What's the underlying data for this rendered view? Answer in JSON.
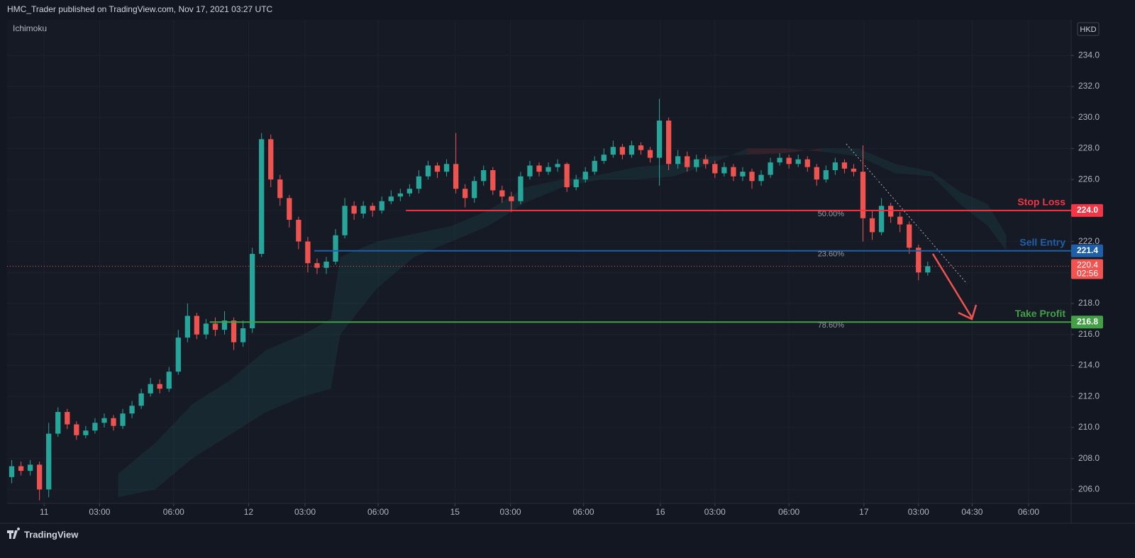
{
  "header": {
    "publisher": "HMC_Trader published on TradingView.com, Nov 17, 2021 03:27 UTC",
    "indicator": "Ichimoku",
    "currency": "HKD",
    "brand": "TradingView"
  },
  "chart_data": {
    "type": "candlestick",
    "up_color": "#26a69a",
    "down_color": "#ef5350",
    "ylim": [
      205.1,
      236.3
    ],
    "xlim": [
      0,
      115
    ],
    "yticks": [
      {
        "value": 206,
        "label": "206.0"
      },
      {
        "value": 208,
        "label": "208.0"
      },
      {
        "value": 210,
        "label": "210.0"
      },
      {
        "value": 212,
        "label": "212.0"
      },
      {
        "value": 214,
        "label": "214.0"
      },
      {
        "value": 216,
        "label": "216.0"
      },
      {
        "value": 218,
        "label": "218.0"
      },
      {
        "value": 220,
        "label": "220.0"
      },
      {
        "value": 222,
        "label": "222.0"
      },
      {
        "value": 224,
        "label": "224.0"
      },
      {
        "value": 226,
        "label": "226.0"
      },
      {
        "value": 228,
        "label": "228.0"
      },
      {
        "value": 230,
        "label": "230.0"
      },
      {
        "value": 232,
        "label": "232.0"
      },
      {
        "value": 234,
        "label": "234.0"
      }
    ],
    "xticks": [
      {
        "value": 4,
        "label": "11"
      },
      {
        "value": 10,
        "label": "03:00"
      },
      {
        "value": 18,
        "label": "06:00"
      },
      {
        "value": 26.1,
        "label": "12"
      },
      {
        "value": 32.2,
        "label": "03:00"
      },
      {
        "value": 40.1,
        "label": "06:00"
      },
      {
        "value": 48.4,
        "label": "15"
      },
      {
        "value": 54.4,
        "label": "03:00"
      },
      {
        "value": 62.3,
        "label": "06:00"
      },
      {
        "value": 70.6,
        "label": "16"
      },
      {
        "value": 76.5,
        "label": "03:00"
      },
      {
        "value": 84.5,
        "label": "06:00"
      },
      {
        "value": 92.6,
        "label": "17"
      },
      {
        "value": 98.5,
        "label": "03:00"
      },
      {
        "value": 104.3,
        "label": "04:30"
      },
      {
        "value": 110.4,
        "label": "06:00"
      }
    ],
    "open": [
      206.8,
      207.5,
      207.2,
      207.6,
      206.0,
      209.6,
      211.0,
      210.2,
      209.5,
      209.8,
      210.3,
      210.6,
      210.1,
      210.9,
      211.4,
      212.2,
      212.8,
      212.5,
      213.6,
      215.8,
      217.2,
      216.0,
      216.7,
      216.3,
      216.9,
      215.5,
      216.4,
      221.2,
      228.6,
      226.0,
      224.8,
      223.4,
      222.0,
      220.6,
      220.3,
      220.7,
      222.4,
      224.3,
      223.8,
      224.3,
      224.0,
      224.6,
      224.9,
      225.1,
      225.4,
      226.2,
      226.9,
      226.5,
      227.0,
      225.4,
      224.8,
      225.9,
      226.6,
      225.3,
      224.9,
      224.6,
      226.2,
      226.9,
      226.5,
      226.8,
      227.0,
      225.5,
      226.0,
      226.5,
      227.2,
      227.6,
      228.1,
      227.6,
      228.2,
      227.9,
      227.4,
      229.8,
      227.0,
      227.5,
      226.8,
      227.3,
      227.0,
      226.4,
      226.8,
      226.2,
      226.5,
      225.9,
      226.3,
      227.1,
      227.4,
      227.0,
      227.3,
      226.8,
      226.0,
      226.6,
      227.1,
      226.7,
      226.5,
      223.5,
      222.6,
      224.3,
      223.6,
      223.1,
      221.6,
      220.0
    ],
    "high": [
      207.9,
      207.8,
      207.9,
      207.8,
      210.3,
      211.3,
      211.2,
      210.4,
      210.1,
      210.6,
      210.9,
      210.8,
      211.2,
      211.7,
      212.5,
      213.2,
      213.1,
      213.9,
      216.3,
      218.0,
      217.4,
      217.0,
      217.1,
      217.5,
      217.1,
      216.9,
      221.6,
      229.0,
      228.9,
      226.3,
      225.0,
      223.6,
      222.3,
      220.9,
      221.0,
      222.8,
      224.8,
      224.6,
      224.6,
      224.5,
      224.9,
      225.3,
      225.4,
      225.7,
      226.6,
      227.2,
      227.1,
      227.3,
      229.0,
      225.7,
      226.2,
      226.9,
      226.8,
      225.6,
      225.2,
      226.5,
      227.2,
      227.1,
      227.1,
      227.3,
      227.1,
      226.3,
      226.8,
      227.5,
      228.0,
      228.5,
      228.3,
      228.5,
      228.4,
      228.1,
      231.2,
      230.0,
      227.9,
      227.8,
      227.6,
      227.6,
      227.2,
      227.1,
      227.0,
      226.8,
      226.7,
      226.6,
      227.4,
      227.7,
      227.6,
      227.6,
      227.5,
      227.0,
      226.9,
      227.4,
      227.3,
      227.0,
      228.2,
      224.0,
      224.8,
      224.5,
      223.9,
      223.3,
      221.8,
      220.7
    ],
    "low": [
      206.4,
      206.9,
      206.9,
      205.3,
      205.5,
      209.4,
      209.9,
      209.2,
      209.3,
      209.6,
      210.0,
      209.8,
      209.9,
      210.6,
      211.2,
      212.0,
      212.2,
      212.3,
      213.4,
      215.5,
      215.7,
      215.7,
      215.9,
      216.0,
      215.0,
      215.2,
      216.1,
      221.0,
      225.5,
      224.3,
      222.9,
      221.5,
      220.0,
      219.9,
      219.9,
      220.5,
      222.2,
      223.4,
      223.5,
      223.6,
      223.8,
      224.4,
      224.6,
      224.9,
      225.1,
      226.0,
      226.1,
      226.2,
      225.1,
      224.2,
      224.5,
      225.6,
      225.0,
      224.5,
      223.9,
      224.4,
      226.0,
      226.2,
      226.3,
      226.5,
      225.2,
      225.3,
      225.8,
      226.3,
      227.0,
      227.4,
      227.3,
      227.4,
      227.6,
      227.1,
      225.6,
      226.6,
      226.7,
      226.5,
      226.5,
      226.7,
      226.1,
      226.2,
      225.9,
      225.9,
      225.4,
      225.6,
      226.1,
      226.9,
      226.7,
      226.8,
      226.5,
      225.6,
      225.8,
      226.3,
      226.4,
      226.2,
      222.0,
      222.1,
      222.4,
      223.2,
      222.6,
      221.2,
      219.5,
      219.8
    ],
    "close": [
      207.5,
      207.2,
      207.6,
      206.0,
      209.6,
      211.0,
      210.2,
      209.5,
      209.8,
      210.3,
      210.6,
      210.1,
      210.9,
      211.4,
      212.2,
      212.8,
      212.5,
      213.6,
      215.8,
      217.2,
      216.0,
      216.7,
      216.3,
      216.9,
      215.5,
      216.4,
      221.2,
      228.6,
      226.0,
      224.8,
      223.4,
      222.0,
      220.6,
      220.3,
      220.7,
      222.4,
      224.3,
      223.8,
      224.3,
      224.0,
      224.6,
      224.9,
      225.1,
      225.4,
      226.2,
      226.9,
      226.5,
      227.0,
      225.4,
      224.8,
      225.9,
      226.6,
      225.3,
      224.9,
      224.6,
      226.2,
      226.9,
      226.5,
      226.8,
      227.0,
      225.5,
      226.0,
      226.5,
      227.2,
      227.6,
      228.1,
      227.6,
      228.2,
      227.9,
      227.4,
      229.8,
      227.0,
      227.5,
      226.8,
      227.3,
      227.0,
      226.4,
      226.8,
      226.2,
      226.5,
      225.9,
      226.3,
      227.1,
      227.4,
      227.0,
      227.3,
      226.8,
      226.0,
      226.6,
      227.1,
      226.7,
      226.5,
      223.5,
      222.6,
      224.3,
      223.6,
      223.1,
      221.6,
      220.0,
      220.4
    ],
    "cloud": {
      "up_color": "rgba(38,166,154,0.10)",
      "down_color": "rgba(239,83,80,0.14)",
      "x": [
        12,
        16,
        20,
        24,
        28,
        32,
        35,
        36,
        40,
        44,
        48,
        52,
        56,
        60,
        64,
        68,
        72,
        76,
        80,
        84,
        88,
        92,
        96,
        100,
        103,
        106,
        108
      ],
      "span_a": [
        207,
        209,
        211.5,
        213,
        215,
        216,
        217,
        221,
        222,
        222.5,
        223,
        224,
        225.5,
        226,
        226.3,
        226.8,
        227,
        227.5,
        227.6,
        227.7,
        228,
        228,
        227,
        226.5,
        225.2,
        224.4,
        222.4
      ],
      "span_b": [
        205.5,
        206,
        208,
        209.5,
        211,
        212,
        212.5,
        216,
        219,
        221,
        222,
        223,
        224.5,
        225.5,
        226,
        226,
        226.2,
        227,
        228,
        228,
        227.8,
        227.5,
        226.4,
        226.2,
        224.4,
        223.0,
        221.4
      ]
    },
    "levels": [
      {
        "name": "Stop Loss",
        "value": 224.0,
        "value_label": "224.0",
        "fib": "50.00%",
        "color": "#f23645",
        "from": 43.1
      },
      {
        "name": "Sell Entry",
        "value": 221.4,
        "value_label": "221.4",
        "fib": "23.60%",
        "color": "#1e5fa8",
        "from": 33.2
      },
      {
        "name": "Take Profit",
        "value": 216.8,
        "value_label": "216.8",
        "fib": "78.60%",
        "color": "#43a047",
        "from": 21.9
      }
    ],
    "last_price": {
      "value": 220.4,
      "value_label": "220.4",
      "countdown": "02:56",
      "color": "#f05350"
    }
  }
}
